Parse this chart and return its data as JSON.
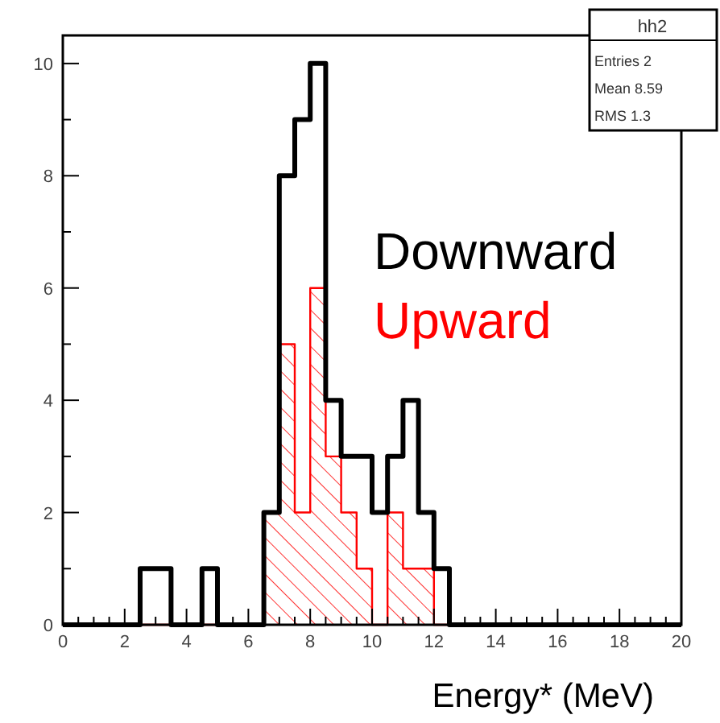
{
  "chart_data": {
    "type": "histogram",
    "xlabel": "Energy* (MeV)",
    "bins": [
      0,
      0.5,
      1,
      1.5,
      2,
      2.5,
      3,
      3.5,
      4,
      4.5,
      5,
      5.5,
      6,
      6.5,
      7,
      7.5,
      8,
      8.5,
      9,
      9.5,
      10,
      10.5,
      11,
      11.5,
      12,
      12.5,
      13,
      13.5,
      14,
      14.5,
      15,
      15.5,
      16,
      16.5,
      17,
      17.5,
      18,
      18.5,
      19,
      19.5,
      20
    ],
    "series": [
      {
        "name": "Downward",
        "color": "#000000",
        "values": [
          0,
          0,
          0,
          0,
          0,
          1,
          1,
          0,
          0,
          1,
          0,
          0,
          0,
          2,
          8,
          9,
          10,
          4,
          3,
          3,
          2,
          3,
          4,
          2,
          1,
          0,
          0,
          0,
          0,
          0,
          0,
          0,
          0,
          0,
          0,
          0,
          0,
          0,
          0,
          0
        ]
      },
      {
        "name": "Upward",
        "color": "#ff0000",
        "values": [
          0,
          0,
          0,
          0,
          0,
          0,
          0,
          0,
          0,
          0,
          0,
          0,
          0,
          2,
          5,
          2,
          6,
          3,
          2,
          1,
          0,
          2,
          1,
          1,
          0,
          0,
          0,
          0,
          0,
          0,
          0,
          0,
          0,
          0,
          0,
          0,
          0,
          0,
          0,
          0
        ]
      }
    ],
    "xlim": [
      0,
      20
    ],
    "ylim": [
      0,
      10.5
    ],
    "xticks": [
      0,
      {
        "value": 0.5,
        "label": null
      },
      {
        "value": 1,
        "label": null
      },
      {
        "value": 1.5,
        "label": null
      },
      2,
      {
        "value": 2.5,
        "label": null
      },
      {
        "value": 3,
        "label": null
      },
      {
        "value": 3.5,
        "label": null
      },
      4,
      {
        "value": 4.5,
        "label": null
      },
      {
        "value": 5,
        "label": null
      },
      {
        "value": 5.5,
        "label": null
      },
      6,
      {
        "value": 6.5,
        "label": null
      },
      {
        "value": 7,
        "label": null
      },
      {
        "value": 7.5,
        "label": null
      },
      8,
      {
        "value": 8.5,
        "label": null
      },
      {
        "value": 9,
        "label": null
      },
      {
        "value": 9.5,
        "label": null
      },
      10,
      {
        "value": 10.5,
        "label": null
      },
      {
        "value": 11,
        "label": null
      },
      {
        "value": 11.5,
        "label": null
      },
      12,
      {
        "value": 12.5,
        "label": null
      },
      {
        "value": 13,
        "label": null
      },
      {
        "value": 13.5,
        "label": null
      },
      14,
      {
        "value": 14.5,
        "label": null
      },
      {
        "value": 15,
        "label": null
      },
      {
        "value": 15.5,
        "label": null
      },
      16,
      {
        "value": 16.5,
        "label": null
      },
      {
        "value": 17,
        "label": null
      },
      {
        "value": 17.5,
        "label": null
      },
      18,
      {
        "value": 18.5,
        "label": null
      },
      {
        "value": 19,
        "label": null
      },
      {
        "value": 19.5,
        "label": null
      },
      20
    ],
    "yticks": [
      0,
      {
        "value": 1,
        "label": null
      },
      2,
      {
        "value": 3,
        "label": null
      },
      4,
      {
        "value": 5,
        "label": null
      },
      6,
      {
        "value": 7,
        "label": null
      },
      8,
      {
        "value": 9,
        "label": null
      },
      10
    ],
    "annotations": [
      "hh2",
      "Entries 2",
      "Mean 8.59",
      "RMS 1.3"
    ],
    "grid": false,
    "legend": "right"
  }
}
